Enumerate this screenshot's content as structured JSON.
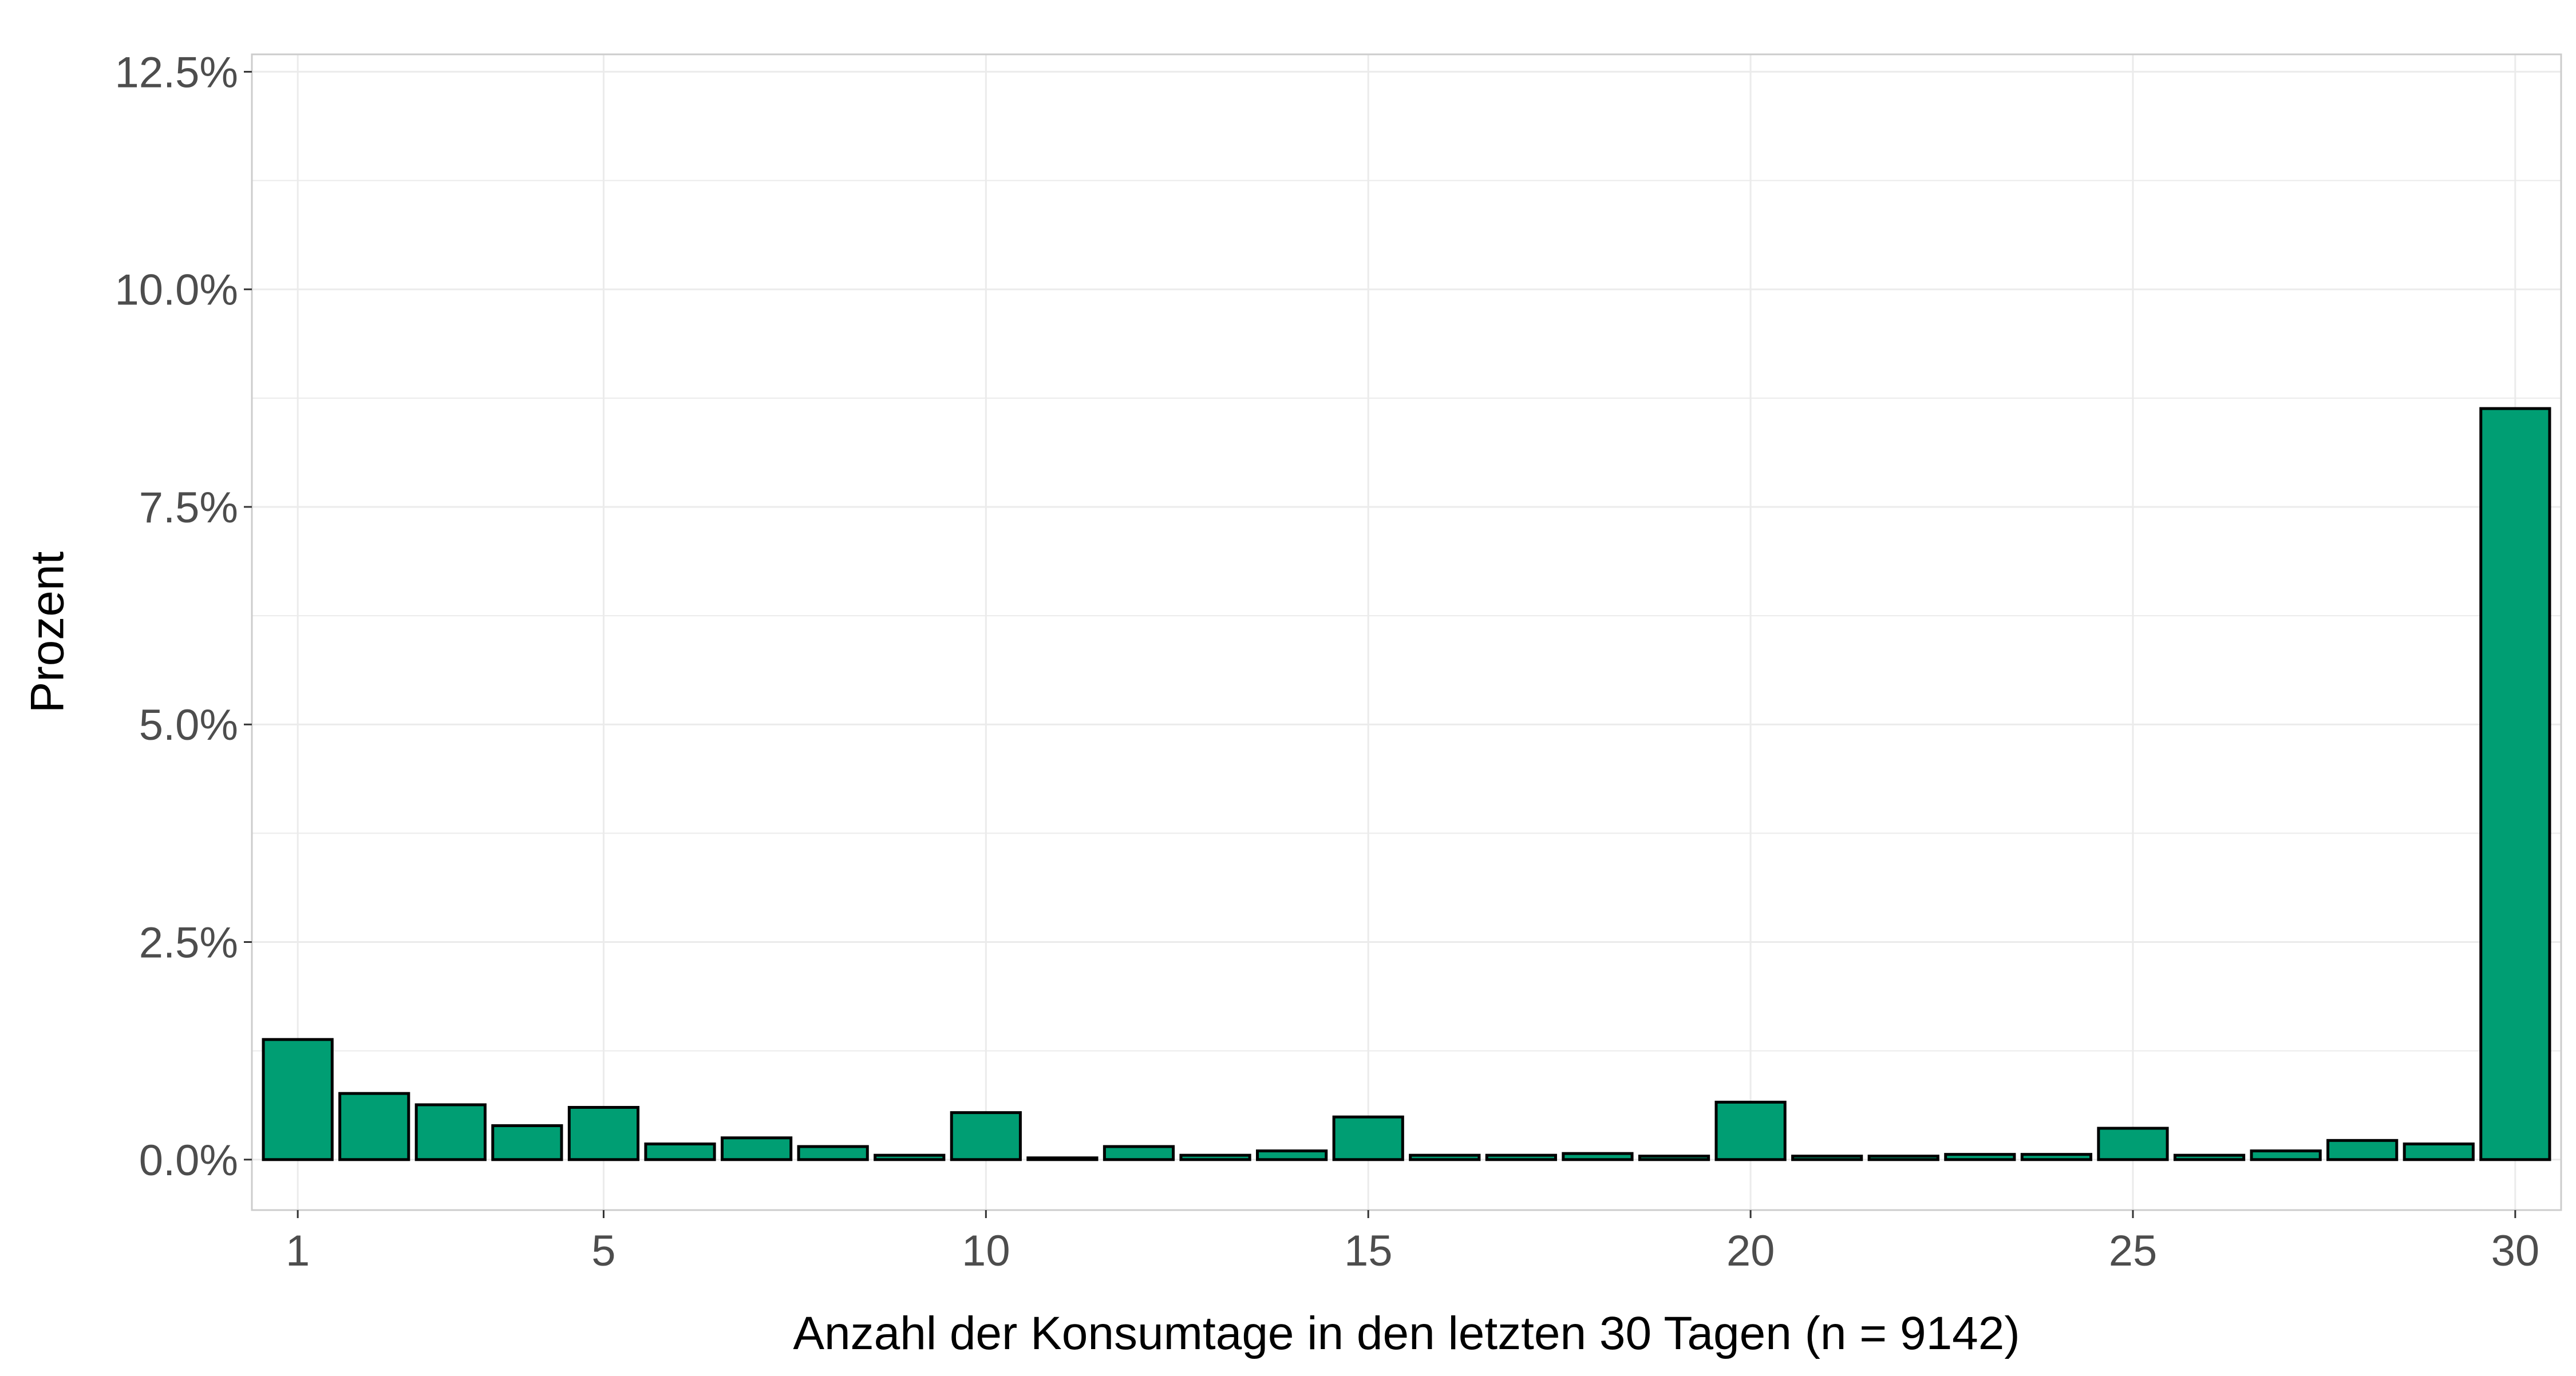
{
  "chart_data": {
    "type": "bar",
    "x": [
      1,
      2,
      3,
      4,
      5,
      6,
      7,
      8,
      9,
      10,
      11,
      12,
      13,
      14,
      15,
      16,
      17,
      18,
      19,
      20,
      21,
      22,
      23,
      24,
      25,
      26,
      27,
      28,
      29,
      30
    ],
    "values": [
      1.38,
      0.76,
      0.63,
      0.39,
      0.6,
      0.18,
      0.25,
      0.15,
      0.05,
      0.54,
      0.02,
      0.15,
      0.05,
      0.1,
      0.49,
      0.05,
      0.05,
      0.07,
      0.04,
      0.66,
      0.04,
      0.04,
      0.06,
      0.06,
      0.36,
      0.05,
      0.1,
      0.22,
      0.18,
      8.63
    ],
    "xlabel": "Anzahl der Konsumtage in den letzten 30 Tagen (n = 9142)",
    "ylabel": "Prozent",
    "ylim": [
      -0.58,
      12.7
    ],
    "y_ticks": [
      0,
      2.5,
      5,
      7.5,
      10,
      12.5
    ],
    "y_tick_labels": [
      "0.0%",
      "2.5%",
      "5.0%",
      "7.5%",
      "10.0%",
      "12.5%"
    ],
    "x_ticks": [
      1,
      5,
      10,
      15,
      20,
      25,
      30
    ],
    "x_tick_labels": [
      "1",
      "5",
      "10",
      "15",
      "20",
      "25",
      "30"
    ],
    "xlim": [
      0.4,
      30.6
    ],
    "grid": true,
    "bar_fill": "#009E73",
    "bar_stroke": "#000000",
    "grid_color": "#ebebeb",
    "panel_border_color": "#cccccc"
  }
}
